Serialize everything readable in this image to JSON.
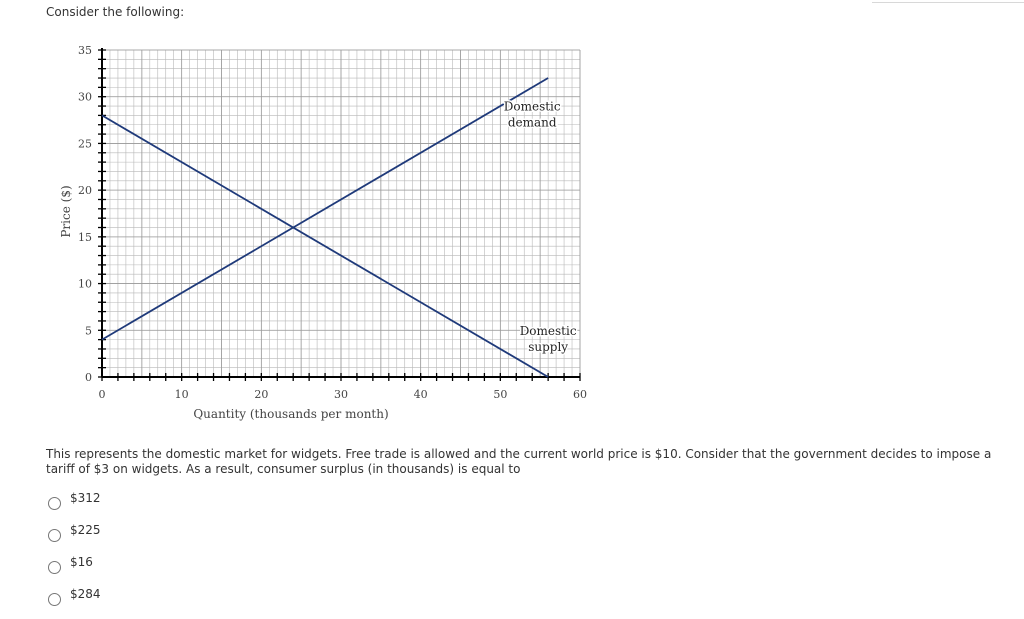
{
  "intro": "Consider the following:",
  "question": "This represents the domestic market for widgets. Free trade is allowed and the current world price is $10. Consider that the government decides to impose a tariff of $3 on widgets.  As a result, consumer surplus (in thousands) is equal to",
  "options": [
    "$312",
    "$225",
    "$16",
    "$284"
  ],
  "chart_data": {
    "type": "line",
    "title": "",
    "xlabel": "Quantity (thousands per month)",
    "ylabel": "Price ($)",
    "xlim": [
      0,
      60
    ],
    "ylim": [
      0,
      35
    ],
    "xticks": [
      0,
      10,
      20,
      30,
      40,
      50,
      60
    ],
    "yticks": [
      0,
      5,
      10,
      15,
      20,
      25,
      30,
      35
    ],
    "grid": true,
    "series": [
      {
        "name": "Domestic demand",
        "x": [
          0,
          56
        ],
        "y": [
          28,
          0
        ]
      },
      {
        "name": "Domestic supply",
        "x": [
          0,
          56
        ],
        "y": [
          4,
          32
        ]
      }
    ],
    "annotations": [
      {
        "lines": [
          "Domestic",
          "demand"
        ],
        "x": 54,
        "y": 28.5
      },
      {
        "lines": [
          "Domestic",
          "supply"
        ],
        "x": 56,
        "y": 4.5
      }
    ],
    "colors": {
      "line": "#1f3a7a",
      "grid": "#b8b8b8",
      "axis": "#000000"
    }
  }
}
